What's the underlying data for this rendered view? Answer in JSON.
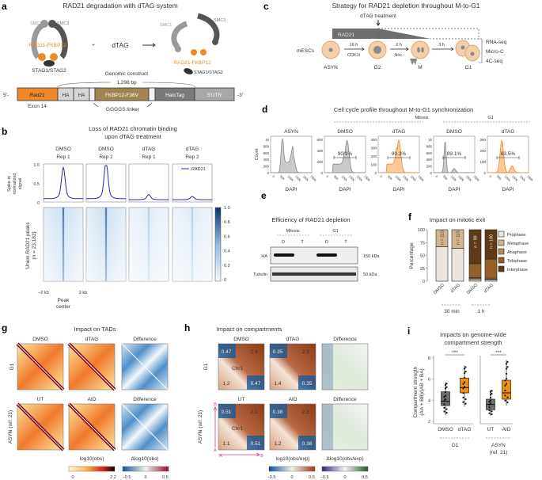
{
  "panels": {
    "a": {
      "label": "a",
      "title": "RAD21 degradation with dTAG system",
      "smc1": "SMC1",
      "smc3": "SMC3",
      "rad21_fkbp12": "RAD21-FKBP12",
      "stag": "STAG1/STAG2",
      "plus": "+",
      "dtag": "dTAG",
      "construct_title": "Genomic construct",
      "construct_size": "1,296 bp",
      "five_prime": "5′-",
      "three_prime": "-3′",
      "segments": [
        "Rad21",
        "HA",
        "HA",
        "FKBP12-F36V",
        "HaloTag",
        "5′UTR"
      ],
      "exon": "Exon 14",
      "linker": "GGGGS linker",
      "colors": {
        "rad21": "#f0882a",
        "fkbp": "#a3844f",
        "halotag": "#7a7a7a",
        "utr": "#a8a8a8",
        "ha": "#d6d6d6"
      }
    },
    "b": {
      "label": "b",
      "title_line1": "Loss of RAD21 chromatin binding",
      "title_line2": "upon dTAG treatment",
      "columns": [
        {
          "cond": "DMSO",
          "rep": "Rep 1",
          "peak": 0.78
        },
        {
          "cond": "DMSO",
          "rep": "Rep 2",
          "peak": 0.97
        },
        {
          "cond": "dTAG",
          "rep": "Rep 1",
          "peak": 0.13
        },
        {
          "cond": "dTAG",
          "rep": "Rep 2",
          "peak": 0.08
        }
      ],
      "ylabel_line1": "Spike-in",
      "ylabel_line2": "normalized",
      "ylabel_line3": "signal",
      "yticks": [
        "1.0",
        "0.5",
        "0"
      ],
      "legend": "RAD21",
      "heatmap_ylabel_line1": "Union RAD21 peaks",
      "heatmap_ylabel_line2": "(n = 23,182)",
      "colorbar_ticks": [
        "1.0",
        "0.8",
        "0.6",
        "0.4",
        "0.2",
        "0"
      ],
      "x_left": "−2 kb",
      "x_right": "2 kb",
      "x_center_line1": "Peak",
      "x_center_line2": "center",
      "line_color": "#2b2ba8"
    },
    "c": {
      "label": "c",
      "title": "Strategy for RAD21 depletion throughout M-to-G1",
      "treatment": "dTAG treatment",
      "rad21": "RAD21",
      "mescs": "mESCs",
      "stages": [
        "ASYN",
        "G2",
        "M",
        "G1"
      ],
      "steps": [
        {
          "time": "16 h",
          "drug": "CDK1i"
        },
        {
          "time": "2 h",
          "drug": "Noc."
        },
        {
          "time": "3 h",
          "drug": ""
        }
      ],
      "assays": [
        "RNA-seq",
        "Micro-C",
        "4C-seq"
      ]
    },
    "d": {
      "label": "d",
      "title": "Cell cycle profile throughout M-to-G1 synchronization",
      "groups": [
        "Mitosis",
        "G1"
      ],
      "plots": [
        {
          "title": "ASYN",
          "yticks": [
            "0",
            "200",
            "400",
            "600",
            "800",
            "1k"
          ],
          "pct": "",
          "color": "#8a8a8a"
        },
        {
          "title": "DMSO",
          "yticks": [
            "0",
            "200",
            "400",
            "600"
          ],
          "pct": "90.1%",
          "color": "#8a8a8a"
        },
        {
          "title": "dTAG",
          "yticks": [
            "0",
            "100",
            "200",
            "300",
            "400"
          ],
          "pct": "90.3%",
          "color": "#f08a24"
        },
        {
          "title": "DMSO",
          "yticks": [
            "0",
            "200",
            "400",
            "600",
            "800",
            "1k"
          ],
          "pct": "89.1%",
          "color": "#8a8a8a"
        },
        {
          "title": "dTAG",
          "yticks": [
            "0",
            "100",
            "200",
            "300"
          ],
          "pct": "83.5%",
          "color": "#f08a24"
        }
      ],
      "ylabel": "Count",
      "xlabel": "DAPI",
      "xticks": [
        "0",
        "50k",
        "100k",
        "150k",
        "200k",
        "250k"
      ]
    },
    "e": {
      "label": "e",
      "title": "Efficiency of RAD21 depletion",
      "groups": [
        "Mitosis",
        "G1"
      ],
      "lanes": [
        "D",
        "T",
        "D",
        "T"
      ],
      "rows": [
        "HA",
        "Tubulin"
      ],
      "markers": [
        "150 kDa",
        "50 kDa"
      ]
    },
    "f": {
      "label": "f",
      "title": "Impact on mitotic exit",
      "ylabel": "Percentage",
      "groups": [
        "30 min",
        "1 h"
      ]
    },
    "g": {
      "label": "g",
      "title": "Impact on TADs",
      "cols_row1": [
        "DMSO",
        "dTAG",
        "Difference"
      ],
      "cols_row2": [
        "UT",
        "AID",
        "Difference"
      ],
      "rows": [
        "G1",
        "ASYN (ref. 21)"
      ],
      "cbar1_label": "log10(obs)",
      "cbar1_ticks": [
        "0",
        "2.2"
      ],
      "cbar2_label": "Δlog10(obs)",
      "cbar2_ticks": [
        "−0.5",
        "0",
        "0.5"
      ]
    },
    "h": {
      "label": "h",
      "title": "Impact on compartments",
      "cols_row1": [
        "DMSO",
        "dTAG",
        "Difference"
      ],
      "cols_row2": [
        "UT",
        "AID",
        "Difference"
      ],
      "rows": [
        "G1",
        "ASYN (ref. 21)"
      ],
      "chr": "Chr1",
      "values_row1": [
        {
          "aa": "0.47",
          "bb": "2.4",
          "ab": "1.2",
          "ba": "0.47"
        },
        {
          "aa": "0.35",
          "bb": "2.3",
          "ab": "1.4",
          "ba": "0.35"
        }
      ],
      "values_row2": [
        {
          "aa": "0.51",
          "bb": "2.1",
          "ab": "1.1",
          "ba": "0.51"
        },
        {
          "aa": "0.38",
          "bb": "2.3",
          "ab": "1.2",
          "ba": "0.38"
        }
      ],
      "axis_a": "A",
      "axis_b": "B",
      "cbar1_label": "log10(obs/exp)",
      "cbar1_ticks": [
        "−0.5",
        "0",
        "0.5"
      ],
      "cbar2_label": "Δlog10(obs/exp)",
      "cbar2_ticks": [
        "−0.5",
        "0",
        "0.5"
      ],
      "axis_color": "#e8338f"
    },
    "i": {
      "label": "i",
      "title_line1": "Impacts on genome-wide",
      "title_line2": "compartment strength",
      "ylabel_line1": "Compartment strength",
      "ylabel_line2": "(AA + BB)/(AB + BA)",
      "yticks": [
        "2",
        "4",
        "6",
        "8"
      ],
      "signif": "***",
      "group1": "G1",
      "group2_line1": "ASYN",
      "group2_line2": "(ref. 21)"
    }
  },
  "chart_data": [
    {
      "type": "bar",
      "stacked": true,
      "title": "Impact on mitotic exit",
      "ylabel": "Percentage",
      "ylim": [
        0,
        100
      ],
      "yticks": [
        0,
        25,
        50,
        75,
        100
      ],
      "categories": [
        "DMSO",
        "dTAG",
        "DMSO",
        "dTAG"
      ],
      "n_labels": [
        "n = 113",
        "n = 115",
        "n = 99",
        "n = 100"
      ],
      "legend": "right",
      "series": [
        {
          "name": "Prophase",
          "color": "#ece6df",
          "values": [
            67,
            64,
            3,
            3
          ]
        },
        {
          "name": "Metaphase",
          "color": "#d2b48e",
          "values": [
            33,
            36,
            2,
            1
          ]
        },
        {
          "name": "Anaphase",
          "color": "#b88a55",
          "values": [
            0,
            0,
            2,
            2
          ]
        },
        {
          "name": "Telophase",
          "color": "#94602a",
          "values": [
            0,
            0,
            27,
            37
          ]
        },
        {
          "name": "Interphase",
          "color": "#5e3a17",
          "values": [
            0,
            0,
            66,
            57
          ]
        }
      ]
    },
    {
      "type": "box",
      "title": "Impacts on genome-wide compartment strength",
      "ylim": [
        2,
        8
      ],
      "categories": [
        "DMSO",
        "dTAG",
        "UT",
        "AID"
      ],
      "boxes": [
        {
          "name": "DMSO",
          "color": "#6e6e6e",
          "min": 2.6,
          "q1": 3.5,
          "median": 3.9,
          "q3": 4.8,
          "max": 5.7
        },
        {
          "name": "dTAG",
          "color": "#f0900e",
          "min": 3.4,
          "q1": 4.7,
          "median": 5.2,
          "q3": 6.1,
          "max": 7.3
        },
        {
          "name": "UT",
          "color": "#6e6e6e",
          "min": 2.5,
          "q1": 3.1,
          "median": 3.6,
          "q3": 4.1,
          "max": 5.0
        },
        {
          "name": "AID",
          "color": "#f0900e",
          "min": 3.5,
          "q1": 4.1,
          "median": 4.7,
          "q3": 5.9,
          "max": 7.8
        }
      ]
    }
  ]
}
